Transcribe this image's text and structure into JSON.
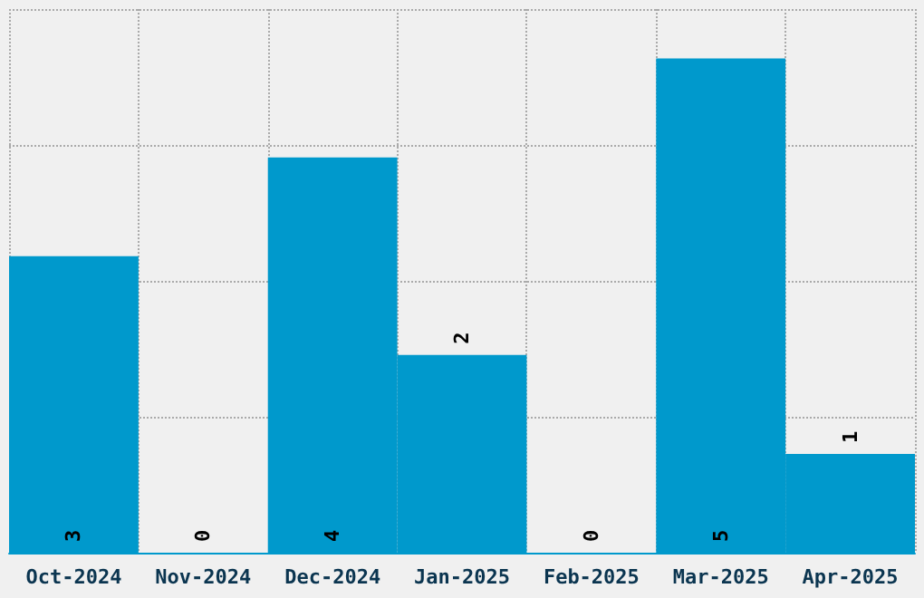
{
  "chart_data": {
    "type": "bar",
    "categories": [
      "Oct-2024",
      "Nov-2024",
      "Dec-2024",
      "Jan-2025",
      "Feb-2025",
      "Mar-2025",
      "Apr-2025"
    ],
    "values": [
      3,
      0,
      4,
      2,
      0,
      5,
      1
    ],
    "color": "#0099cc",
    "ylim": [
      0,
      5.5
    ],
    "yticks": [
      {
        "value": 1.375,
        "label": null
      },
      {
        "value": 2.75,
        "label": null
      },
      {
        "value": 4.125,
        "label": null
      },
      {
        "value": 5.5,
        "label": null
      }
    ],
    "tick_labels": "x",
    "grid": true,
    "data_labels": true
  }
}
